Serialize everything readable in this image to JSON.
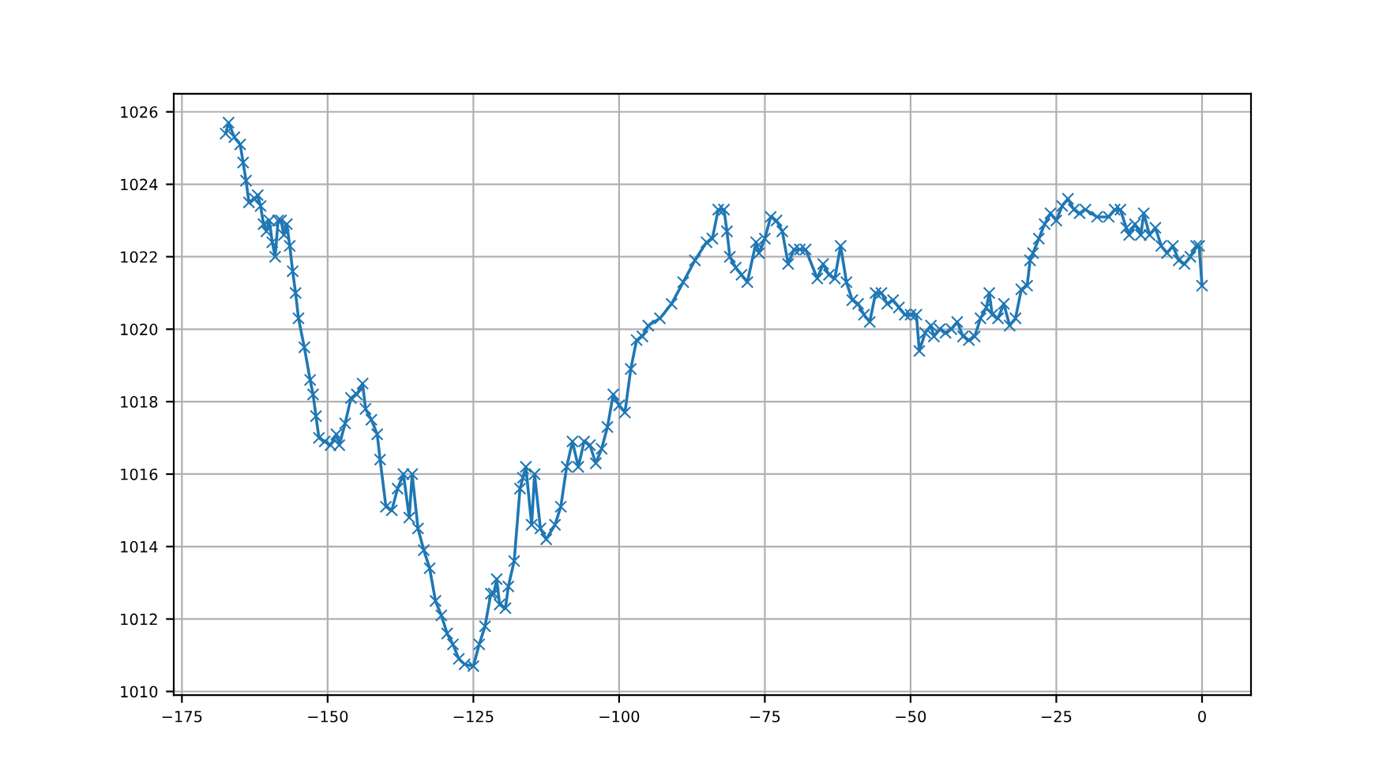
{
  "chart_data": {
    "type": "line",
    "marker": "cross",
    "line_style": "solid",
    "grid": true,
    "xlim": [
      -176.4,
      8.4
    ],
    "ylim": [
      1009.9,
      1026.5
    ],
    "xticks": [
      {
        "value": -175,
        "label": "−175"
      },
      {
        "value": -150,
        "label": "−150"
      },
      {
        "value": -125,
        "label": "−125"
      },
      {
        "value": -100,
        "label": "−100"
      },
      {
        "value": -75,
        "label": "−75"
      },
      {
        "value": -50,
        "label": "−50"
      },
      {
        "value": -25,
        "label": "−25"
      },
      0
    ],
    "yticks": [
      1010,
      1012,
      1014,
      1016,
      1018,
      1020,
      1022,
      1024,
      1026
    ],
    "series": [
      {
        "color": "#1f77b4",
        "x": [
          -167.5,
          -167,
          -166,
          -165,
          -164.5,
          -164,
          -163.5,
          -162.5,
          -162,
          -161.5,
          -161,
          -160.5,
          -160,
          -159.5,
          -159,
          -158.5,
          -158,
          -157.5,
          -157,
          -156.5,
          -156,
          -155.5,
          -155,
          -154,
          -153,
          -152.5,
          -152,
          -151.5,
          -150.5,
          -149.5,
          -148.5,
          -148,
          -147,
          -146,
          -145,
          -144,
          -143.5,
          -142.5,
          -141.5,
          -141,
          -140,
          -139,
          -138,
          -137,
          -136,
          -135.5,
          -134.5,
          -133.5,
          -132.5,
          -131.5,
          -130.5,
          -129.5,
          -128.5,
          -127.5,
          -126.5,
          -125,
          -124,
          -123,
          -122,
          -121.5,
          -121,
          -120.5,
          -119.5,
          -119,
          -118,
          -117,
          -116.5,
          -116,
          -115,
          -114.5,
          -113.5,
          -112.5,
          -111,
          -110,
          -109,
          -108,
          -107,
          -106,
          -105,
          -104,
          -103,
          -102,
          -101,
          -100,
          -99,
          -98,
          -97,
          -96,
          -95,
          -93,
          -91,
          -89,
          -87,
          -85,
          -84,
          -83,
          -82,
          -81.5,
          -81,
          -80,
          -79,
          -78,
          -76.5,
          -76,
          -75,
          -74,
          -73,
          -72,
          -71,
          -70,
          -69,
          -68,
          -66,
          -65,
          -64,
          -63,
          -62,
          -61,
          -60,
          -59,
          -58,
          -57,
          -56,
          -55,
          -54,
          -53,
          -52,
          -51,
          -50,
          -49,
          -48.5,
          -47.5,
          -46.5,
          -46,
          -45,
          -44,
          -43,
          -42,
          -41,
          -40,
          -39,
          -38,
          -37,
          -36.5,
          -36,
          -35,
          -34,
          -33,
          -32,
          -31,
          -30,
          -29.5,
          -29,
          -28,
          -27,
          -26,
          -25,
          -24,
          -23,
          -22,
          -21,
          -20,
          -18,
          -16,
          -15,
          -14,
          -13,
          -12.5,
          -11.5,
          -10.5,
          -10,
          -9,
          -8,
          -7,
          -6,
          -5,
          -4,
          -3,
          -2,
          -1,
          -0.5,
          0
        ],
        "values": [
          1025.4,
          1025.7,
          1025.3,
          1025.1,
          1024.6,
          1024.1,
          1023.5,
          1023.6,
          1023.7,
          1023.4,
          1022.9,
          1022.7,
          1023.0,
          1022.4,
          1022.0,
          1023.0,
          1023.0,
          1022.6,
          1022.9,
          1022.3,
          1021.6,
          1021.0,
          1020.3,
          1019.5,
          1018.6,
          1018.2,
          1017.6,
          1017.0,
          1016.9,
          1016.8,
          1017.1,
          1016.8,
          1017.4,
          1018.1,
          1018.2,
          1018.5,
          1017.8,
          1017.5,
          1017.1,
          1016.4,
          1015.1,
          1015.0,
          1015.6,
          1016.0,
          1014.8,
          1016.0,
          1014.5,
          1013.9,
          1013.4,
          1012.5,
          1012.1,
          1011.6,
          1011.3,
          1010.9,
          1010.75,
          1010.7,
          1011.3,
          1011.8,
          1012.7,
          1012.7,
          1013.1,
          1012.4,
          1012.3,
          1012.9,
          1013.6,
          1015.6,
          1015.9,
          1016.2,
          1014.6,
          1016.0,
          1014.5,
          1014.2,
          1014.6,
          1015.1,
          1016.2,
          1016.9,
          1016.2,
          1016.9,
          1016.8,
          1016.3,
          1016.7,
          1017.3,
          1018.2,
          1017.9,
          1017.7,
          1018.9,
          1019.7,
          1019.8,
          1020.1,
          1020.3,
          1020.7,
          1021.3,
          1021.9,
          1022.4,
          1022.5,
          1023.3,
          1023.3,
          1022.7,
          1022.0,
          1021.7,
          1021.5,
          1021.3,
          1022.4,
          1022.1,
          1022.5,
          1023.1,
          1023.0,
          1022.7,
          1021.8,
          1022.2,
          1022.2,
          1022.2,
          1021.4,
          1021.8,
          1021.5,
          1021.4,
          1022.3,
          1021.3,
          1020.8,
          1020.7,
          1020.4,
          1020.2,
          1021.0,
          1021.0,
          1020.7,
          1020.8,
          1020.6,
          1020.4,
          1020.4,
          1020.4,
          1019.4,
          1019.9,
          1020.1,
          1019.8,
          1020.0,
          1019.9,
          1020.0,
          1020.2,
          1019.8,
          1019.7,
          1019.8,
          1020.3,
          1020.6,
          1021.0,
          1020.4,
          1020.3,
          1020.7,
          1020.1,
          1020.3,
          1021.1,
          1021.2,
          1021.9,
          1022.1,
          1022.5,
          1022.9,
          1023.2,
          1023.0,
          1023.4,
          1023.6,
          1023.3,
          1023.2,
          1023.3,
          1023.1,
          1023.1,
          1023.3,
          1023.3,
          1022.8,
          1022.6,
          1022.9,
          1022.6,
          1023.2,
          1022.6,
          1022.8,
          1022.3,
          1022.1,
          1022.3,
          1021.9,
          1021.8,
          1022.0,
          1022.3,
          1022.3,
          1021.2
        ]
      }
    ]
  }
}
